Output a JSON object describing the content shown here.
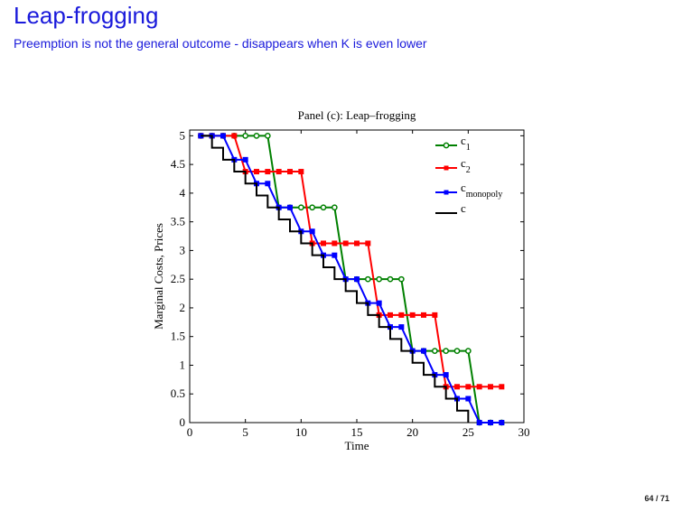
{
  "slide": {
    "title": "Leap-frogging",
    "subtitle": "Preemption is not the general outcome - disappears when K is even lower",
    "page": "64 / 71"
  },
  "chart_data": {
    "type": "line",
    "title": "Panel (c): Leap–frogging",
    "xlabel": "Time",
    "ylabel": "Marginal Costs, Prices",
    "xlim": [
      0,
      30
    ],
    "ylim": [
      0,
      5.1
    ],
    "xticks": [
      0,
      5,
      10,
      15,
      20,
      25,
      30
    ],
    "yticks": [
      0,
      0.5,
      1,
      1.5,
      2,
      2.5,
      3,
      3.5,
      4,
      4.5,
      5
    ],
    "legend_position": "top-right",
    "series": [
      {
        "name": "c",
        "sub": "1",
        "color": "#008000",
        "marker": "circle",
        "step": false,
        "x": [
          1,
          2,
          3,
          4,
          5,
          6,
          7,
          8,
          9,
          10,
          11,
          12,
          13,
          14,
          15,
          16,
          17,
          18,
          19,
          20,
          21,
          22,
          23,
          24,
          25,
          26,
          27,
          28
        ],
        "y": [
          5,
          5,
          5,
          5,
          5,
          5,
          5,
          3.75,
          3.75,
          3.75,
          3.75,
          3.75,
          3.75,
          2.5,
          2.5,
          2.5,
          2.5,
          2.5,
          2.5,
          1.25,
          1.25,
          1.25,
          1.25,
          1.25,
          1.25,
          0,
          0,
          0
        ]
      },
      {
        "name": "c",
        "sub": "2",
        "color": "#ff0000",
        "marker": "square",
        "step": false,
        "x": [
          1,
          2,
          3,
          4,
          5,
          6,
          7,
          8,
          9,
          10,
          11,
          12,
          13,
          14,
          15,
          16,
          17,
          18,
          19,
          20,
          21,
          22,
          23,
          24,
          25,
          26,
          27,
          28
        ],
        "y": [
          5,
          5,
          5,
          5,
          4.375,
          4.375,
          4.375,
          4.375,
          4.375,
          4.375,
          3.125,
          3.125,
          3.125,
          3.125,
          3.125,
          3.125,
          1.875,
          1.875,
          1.875,
          1.875,
          1.875,
          1.875,
          0.625,
          0.625,
          0.625,
          0.625,
          0.625,
          0.625
        ]
      },
      {
        "name": "c",
        "sub": "monopoly",
        "color": "#0000ff",
        "marker": "square",
        "step": false,
        "x": [
          1,
          2,
          3,
          4,
          5,
          6,
          7,
          8,
          9,
          10,
          11,
          12,
          13,
          14,
          15,
          16,
          17,
          18,
          19,
          20,
          21,
          22,
          23,
          24,
          25,
          26,
          27,
          28
        ],
        "y": [
          5,
          5,
          5,
          4.583,
          4.583,
          4.167,
          4.167,
          3.75,
          3.75,
          3.333,
          3.333,
          2.917,
          2.917,
          2.5,
          2.5,
          2.083,
          2.083,
          1.667,
          1.667,
          1.25,
          1.25,
          0.833,
          0.833,
          0.417,
          0.417,
          0,
          0,
          0
        ]
      },
      {
        "name": "c",
        "sub": "",
        "color": "#000000",
        "marker": "none",
        "step": true,
        "x": [
          1,
          2,
          3,
          4,
          5,
          6,
          7,
          8,
          9,
          10,
          11,
          12,
          13,
          14,
          15,
          16,
          17,
          18,
          19,
          20,
          21,
          22,
          23,
          24,
          25
        ],
        "y": [
          5,
          4.792,
          4.583,
          4.375,
          4.167,
          3.958,
          3.75,
          3.542,
          3.333,
          3.125,
          2.917,
          2.708,
          2.5,
          2.292,
          2.083,
          1.875,
          1.667,
          1.458,
          1.25,
          1.042,
          0.833,
          0.625,
          0.417,
          0.208,
          0
        ]
      }
    ]
  }
}
